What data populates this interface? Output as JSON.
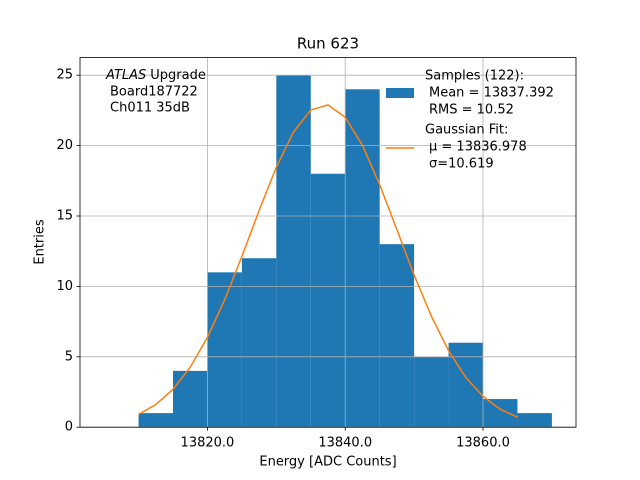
{
  "chart_data": {
    "type": "histogram",
    "title": "Run 623",
    "xlabel": "Energy [ADC Counts]",
    "ylabel": "Entries",
    "bins": [
      13810,
      13815,
      13820,
      13825,
      13830,
      13835,
      13840,
      13845,
      13850,
      13855,
      13860,
      13865,
      13870
    ],
    "series": [
      {
        "name": [
          "Samples (122):",
          "Mean = 13837.392",
          "RMS = 10.52"
        ],
        "color": "#1f77b4",
        "values": [
          1,
          4,
          11,
          12,
          25,
          18,
          24,
          13,
          5,
          6,
          2,
          1
        ]
      },
      {
        "name": [
          "Gaussian Fit:",
          "μ = 13836.978",
          "σ=10.619"
        ],
        "color": "#ff7f0e",
        "x": [
          13810,
          13812.5,
          13815,
          13817.5,
          13820,
          13822.5,
          13825,
          13827.5,
          13830,
          13832.5,
          13835,
          13837.5,
          13840,
          13842.5,
          13845,
          13847.5,
          13850,
          13852.5,
          13855,
          13857.5,
          13860,
          13862.5,
          13865
        ],
        "values": [
          0.91,
          1.61,
          2.69,
          4.26,
          6.39,
          9.05,
          12.13,
          15.39,
          18.47,
          20.97,
          22.53,
          22.89,
          22.01,
          20.02,
          17.23,
          14.03,
          10.81,
          7.88,
          5.43,
          3.54,
          2.19,
          1.28,
          0.71
        ]
      }
    ],
    "annotation": {
      "experiment": "ATLAS",
      "lines": [
        "Upgrade",
        "Board187722",
        "Ch011 35dB"
      ]
    },
    "xlim": [
      13801.5,
      13873.5
    ],
    "xticks": [
      {
        "value": 13820,
        "label": "13820.0"
      },
      {
        "value": 13840,
        "label": "13840.0"
      },
      {
        "value": 13860,
        "label": "13860.0"
      }
    ],
    "ylim": [
      0,
      26.25
    ],
    "yticks": [
      0,
      5,
      10,
      15,
      20,
      25
    ],
    "grid": true,
    "legend": "upper right"
  }
}
